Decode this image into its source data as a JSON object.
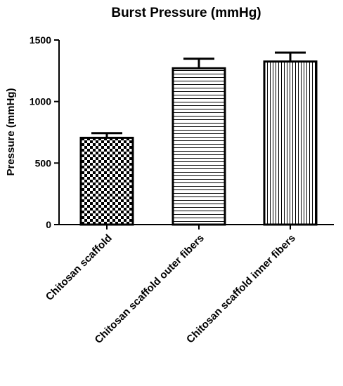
{
  "chart_data": {
    "type": "bar",
    "title": "Burst Pressure (mmHg)",
    "ylabel": "Pressure (mmHg)",
    "xlabel": "",
    "ylim": [
      0,
      1500
    ],
    "yticks": [
      0,
      500,
      1000,
      1500
    ],
    "categories": [
      "Chitosan scaffold",
      "Chitosan scaffold outer fibers",
      "Chitosan scaffold inner fibers"
    ],
    "values": [
      705,
      1270,
      1325
    ],
    "errors": [
      38,
      78,
      72
    ],
    "patterns": [
      "checkerboard",
      "horizontal-lines",
      "vertical-lines"
    ],
    "grid": false,
    "colors": {
      "bar_fill": "#ffffff",
      "bar_stroke": "#000000"
    }
  }
}
